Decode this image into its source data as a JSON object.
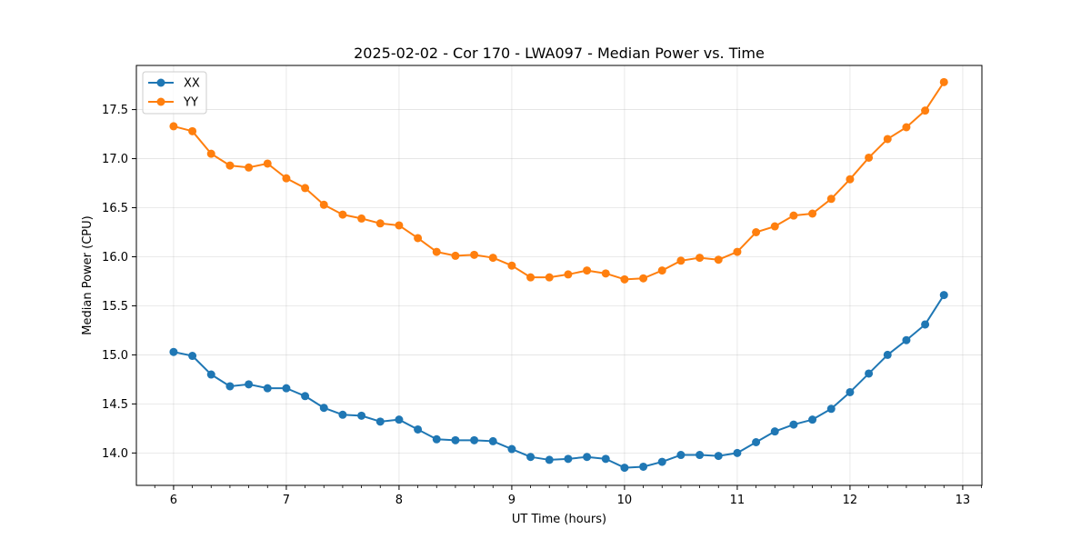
{
  "chart_data": {
    "type": "line",
    "title": "2025-02-02 - Cor 170 - LWA097 - Median Power vs. Time",
    "xlabel": "UT Time (hours)",
    "ylabel": "Median Power (CPU)",
    "xlim": [
      5.67,
      13.17
    ],
    "ylim": [
      13.67,
      17.95
    ],
    "xticks": [
      6,
      7,
      8,
      9,
      10,
      11,
      12,
      13
    ],
    "xtick_labels": [
      "6",
      "7",
      "8",
      "9",
      "10",
      "11",
      "12",
      "13"
    ],
    "yticks": [
      14.0,
      14.5,
      15.0,
      15.5,
      16.0,
      16.5,
      17.0,
      17.5
    ],
    "ytick_labels": [
      "14.0",
      "14.5",
      "15.0",
      "15.5",
      "16.0",
      "16.5",
      "17.0",
      "17.5"
    ],
    "grid": true,
    "legend_position": "top-left",
    "x": [
      6.0,
      6.1667,
      6.3333,
      6.5,
      6.6667,
      6.8333,
      7.0,
      7.1667,
      7.3333,
      7.5,
      7.6667,
      7.8333,
      8.0,
      8.1667,
      8.3333,
      8.5,
      8.6667,
      8.8333,
      9.0,
      9.1667,
      9.3333,
      9.5,
      9.6667,
      9.8333,
      10.0,
      10.1667,
      10.3333,
      10.5,
      10.6667,
      10.8333,
      11.0,
      11.1667,
      11.3333,
      11.5,
      11.6667,
      11.8333,
      12.0,
      12.1667,
      12.3333,
      12.5,
      12.6667,
      12.8333
    ],
    "series": [
      {
        "name": "XX",
        "color": "#1f77b4",
        "values": [
          15.03,
          14.99,
          14.8,
          14.68,
          14.7,
          14.66,
          14.66,
          14.58,
          14.46,
          14.39,
          14.38,
          14.32,
          14.34,
          14.24,
          14.14,
          14.13,
          14.13,
          14.12,
          14.04,
          13.96,
          13.93,
          13.94,
          13.96,
          13.94,
          13.85,
          13.86,
          13.91,
          13.98,
          13.98,
          13.97,
          14.0,
          14.11,
          14.22,
          14.29,
          14.34,
          14.45,
          14.62,
          14.81,
          15.0,
          15.15,
          15.31,
          15.61
        ]
      },
      {
        "name": "YY",
        "color": "#ff7f0e",
        "values": [
          17.33,
          17.28,
          17.05,
          16.93,
          16.91,
          16.95,
          16.8,
          16.7,
          16.53,
          16.43,
          16.39,
          16.34,
          16.32,
          16.19,
          16.05,
          16.01,
          16.02,
          15.99,
          15.91,
          15.79,
          15.79,
          15.82,
          15.86,
          15.83,
          15.77,
          15.78,
          15.86,
          15.96,
          15.99,
          15.97,
          16.05,
          16.25,
          16.31,
          16.42,
          16.44,
          16.59,
          16.79,
          17.01,
          17.2,
          17.32,
          17.49,
          17.78
        ]
      }
    ]
  }
}
